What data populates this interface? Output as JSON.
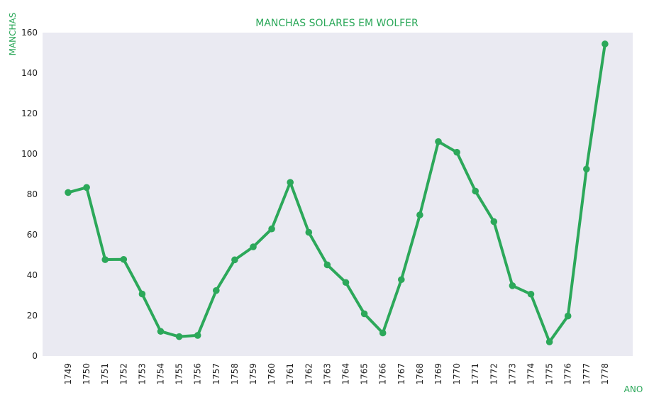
{
  "chart_data": {
    "type": "line",
    "title": "MANCHAS SOLARES EM WOLFER",
    "xlabel": "ANO",
    "ylabel": "MANCHAS",
    "categories": [
      "1749",
      "1750",
      "1751",
      "1752",
      "1753",
      "1754",
      "1755",
      "1756",
      "1757",
      "1758",
      "1759",
      "1760",
      "1761",
      "1762",
      "1763",
      "1764",
      "1765",
      "1766",
      "1767",
      "1768",
      "1769",
      "1770",
      "1771",
      "1772",
      "1773",
      "1774",
      "1775",
      "1776",
      "1777",
      "1778"
    ],
    "series": [
      {
        "values": [
          80.9,
          83.4,
          47.7,
          47.8,
          30.7,
          12.2,
          9.6,
          10.2,
          32.4,
          47.6,
          54.0,
          62.9,
          85.9,
          61.2,
          45.1,
          36.4,
          20.9,
          11.4,
          37.8,
          69.8,
          106.1,
          100.8,
          81.6,
          66.5,
          34.8,
          30.6,
          7.0,
          19.8,
          92.5,
          154.4
        ]
      }
    ],
    "ylim": [
      0,
      160
    ],
    "yticks": [
      0,
      20,
      40,
      60,
      80,
      100,
      120,
      140,
      160
    ],
    "grid": false,
    "colors": {
      "line": "#2ca85a",
      "text": "#2ca85a",
      "plot_bg": "#eaeaf2"
    }
  }
}
